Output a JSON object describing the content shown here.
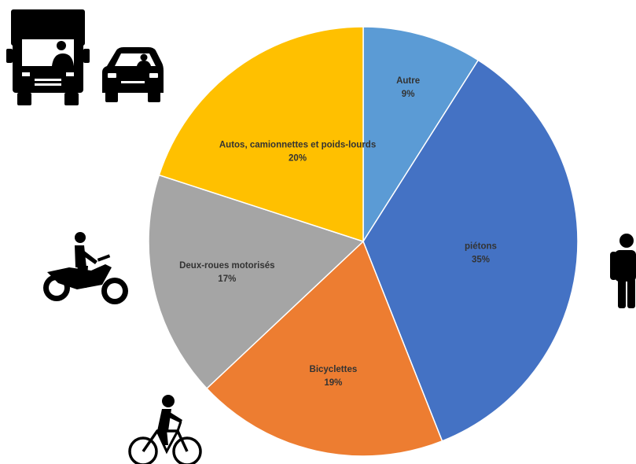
{
  "chart_data": {
    "type": "pie",
    "title": "",
    "slices": [
      {
        "label": "Autre",
        "value": 9,
        "value_label": "9%",
        "color": "#5b9bd5"
      },
      {
        "label": "piétons",
        "value": 35,
        "value_label": "35%",
        "color": "#4472c4"
      },
      {
        "label": "Bicyclettes",
        "value": 19,
        "value_label": "19%",
        "color": "#ed7d31"
      },
      {
        "label": "Deux-roues motorisés",
        "value": 17,
        "value_label": "17%",
        "color": "#a5a5a5"
      },
      {
        "label": "Autos, camionnettes et poids-lourds",
        "value": 20,
        "value_label": "20%",
        "color": "#ffc000"
      }
    ],
    "start_angle_deg": 0,
    "direction": "clockwise",
    "legend": "none"
  },
  "icons": [
    "truck-icon",
    "car-icon",
    "pedestrian-icon",
    "motorcycle-icon",
    "bicycle-icon"
  ]
}
